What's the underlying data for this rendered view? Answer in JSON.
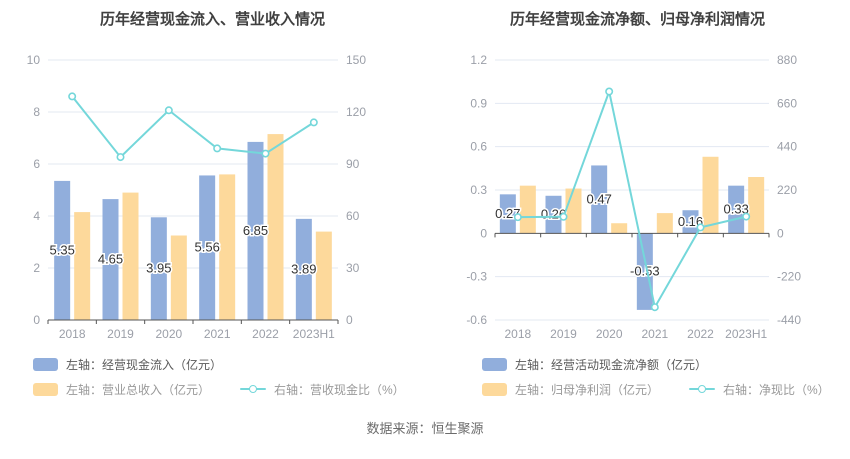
{
  "source_note": "数据来源：恒生聚源",
  "colors": {
    "bar_blue": "#91AEDC",
    "bar_yellow": "#FDD99B",
    "line_teal": "#74D7DA",
    "grid": "#E3E8F2",
    "axis_line": "#555555",
    "axis_label": "#9B9FA8",
    "value_label": "#333333",
    "title_text": "#404040"
  },
  "chart_data": [
    {
      "type": "bar",
      "title": "历年经营现金流入、营业收入情况",
      "categories": [
        "2018",
        "2019",
        "2020",
        "2021",
        "2022",
        "2023H1"
      ],
      "series": [
        {
          "name": "左轴：经营现金流入（亿元）",
          "type": "bar",
          "axis": "left",
          "labeled": true,
          "values": [
            5.35,
            4.65,
            3.95,
            5.56,
            6.85,
            3.89
          ]
        },
        {
          "name": "左轴：营业总收入（亿元）",
          "type": "bar",
          "axis": "left",
          "labeled": false,
          "values": [
            4.15,
            4.9,
            3.25,
            5.6,
            7.15,
            3.4
          ]
        },
        {
          "name": "右轴：营收现金比（%）",
          "type": "line",
          "axis": "right",
          "labeled": false,
          "values": [
            129,
            94,
            121,
            99,
            96,
            114
          ]
        }
      ],
      "left_axis": {
        "ticks": [
          10,
          8,
          6,
          4,
          2,
          0
        ],
        "max": 10,
        "min": 0
      },
      "right_axis": {
        "ticks": [
          150,
          120,
          90,
          60,
          30,
          0
        ],
        "max": 150,
        "min": 0
      },
      "grid_on": true,
      "legend_position": "bottom"
    },
    {
      "type": "bar",
      "title": "历年经营现金流净额、归母净利润情况",
      "categories": [
        "2018",
        "2019",
        "2020",
        "2021",
        "2022",
        "2023H1"
      ],
      "series": [
        {
          "name": "左轴：经营活动现金流净额（亿元）",
          "type": "bar",
          "axis": "left",
          "labeled": true,
          "values": [
            0.27,
            0.26,
            0.47,
            -0.53,
            0.16,
            0.33
          ]
        },
        {
          "name": "左轴：归母净利润（亿元）",
          "type": "bar",
          "axis": "left",
          "labeled": false,
          "values": [
            0.33,
            0.31,
            0.07,
            0.14,
            0.53,
            0.39
          ]
        },
        {
          "name": "右轴：净现比（%）",
          "type": "line",
          "axis": "right",
          "labeled": false,
          "values": [
            82,
            84,
            720,
            -375,
            30,
            85
          ]
        }
      ],
      "left_axis": {
        "ticks": [
          1.2,
          0.9,
          0.6,
          0.3,
          0,
          -0.3,
          -0.6
        ],
        "max": 1.2,
        "min": -0.6
      },
      "right_axis": {
        "ticks": [
          880,
          660,
          440,
          220,
          0,
          -220,
          -440
        ],
        "max": 880,
        "min": -440
      },
      "grid_on": true,
      "legend_position": "bottom"
    }
  ]
}
